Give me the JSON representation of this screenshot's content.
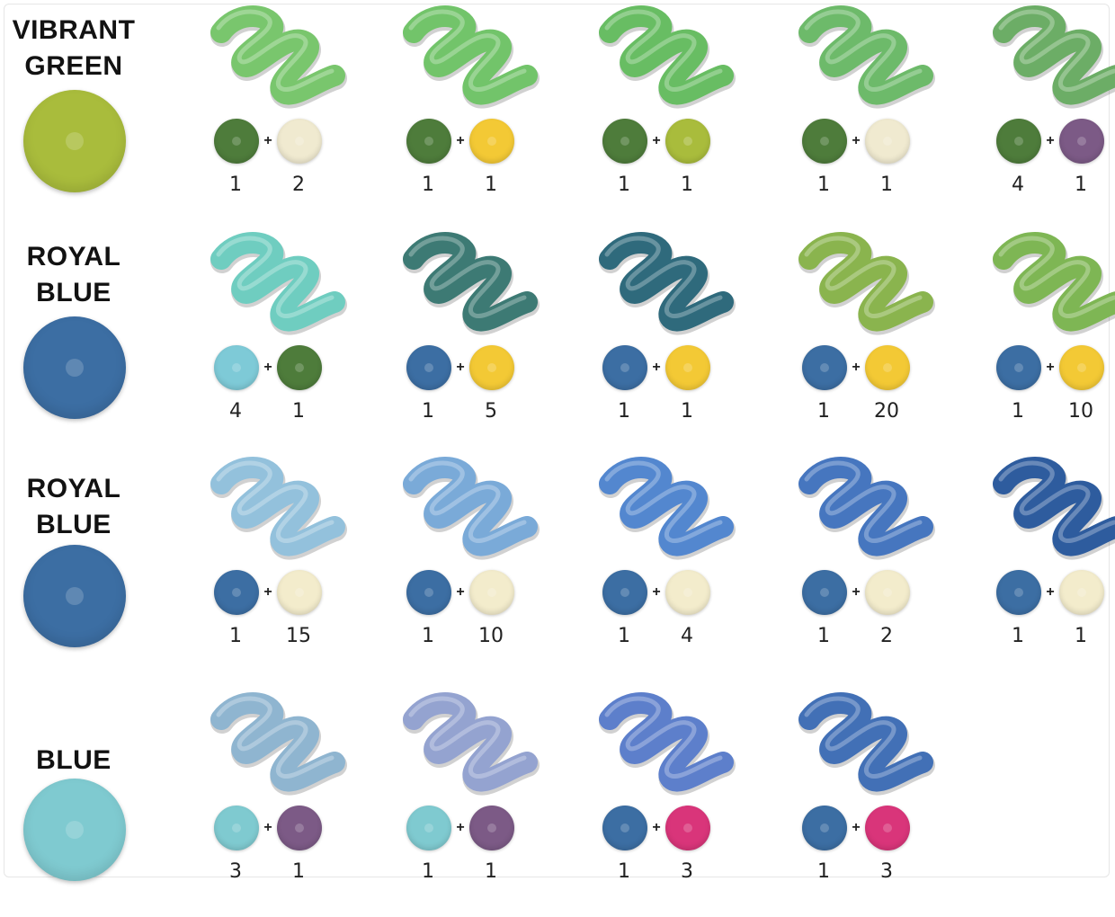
{
  "rows": [
    {
      "label_lines": [
        "VIBRANT",
        "GREEN"
      ],
      "base_color": "#a9bc3c",
      "mixes": [
        {
          "result": "#79c66d",
          "a": {
            "color": "#4e7c3b",
            "parts": "1"
          },
          "b": {
            "color": "#f0ead0",
            "parts": "2"
          }
        },
        {
          "result": "#72c46a",
          "a": {
            "color": "#4e7c3b",
            "parts": "1"
          },
          "b": {
            "color": "#f3c935",
            "parts": "1"
          }
        },
        {
          "result": "#68bd63",
          "a": {
            "color": "#4e7c3b",
            "parts": "1"
          },
          "b": {
            "color": "#a9bc3c",
            "parts": "1"
          }
        },
        {
          "result": "#6dba6a",
          "a": {
            "color": "#4e7c3b",
            "parts": "1"
          },
          "b": {
            "color": "#f0ead0",
            "parts": "1"
          }
        },
        {
          "result": "#6cad66",
          "a": {
            "color": "#4e7c3b",
            "parts": "4"
          },
          "b": {
            "color": "#7c5a86",
            "parts": "1"
          }
        }
      ]
    },
    {
      "label_lines": [
        "ROYAL",
        "BLUE"
      ],
      "base_color": "#3c6ea3",
      "mixes": [
        {
          "result": "#6fcdc0",
          "a": {
            "color": "#7ecad7",
            "parts": "4"
          },
          "b": {
            "color": "#4e7c3b",
            "parts": "1"
          }
        },
        {
          "result": "#3d7a74",
          "a": {
            "color": "#3c6ea3",
            "parts": "1"
          },
          "b": {
            "color": "#f3c935",
            "parts": "5"
          }
        },
        {
          "result": "#2f6a7c",
          "a": {
            "color": "#3c6ea3",
            "parts": "1"
          },
          "b": {
            "color": "#f3c935",
            "parts": "1"
          }
        },
        {
          "result": "#8ab44e",
          "a": {
            "color": "#3c6ea3",
            "parts": "1"
          },
          "b": {
            "color": "#f3c935",
            "parts": "20"
          }
        },
        {
          "result": "#7eb654",
          "a": {
            "color": "#3c6ea3",
            "parts": "1"
          },
          "b": {
            "color": "#f3c935",
            "parts": "10"
          }
        }
      ]
    },
    {
      "label_lines": [
        "ROYAL",
        "BLUE"
      ],
      "base_color": "#3c6ea3",
      "mixes": [
        {
          "result": "#93c1dc",
          "a": {
            "color": "#3c6ea3",
            "parts": "1"
          },
          "b": {
            "color": "#f3eccc",
            "parts": "15"
          }
        },
        {
          "result": "#7aaad8",
          "a": {
            "color": "#3c6ea3",
            "parts": "1"
          },
          "b": {
            "color": "#f3eccc",
            "parts": "10"
          }
        },
        {
          "result": "#5387cf",
          "a": {
            "color": "#3c6ea3",
            "parts": "1"
          },
          "b": {
            "color": "#f3eccc",
            "parts": "4"
          }
        },
        {
          "result": "#4676bf",
          "a": {
            "color": "#3c6ea3",
            "parts": "1"
          },
          "b": {
            "color": "#f3eccc",
            "parts": "2"
          }
        },
        {
          "result": "#2e5c9e",
          "a": {
            "color": "#3c6ea3",
            "parts": "1"
          },
          "b": {
            "color": "#f3eccc",
            "parts": "1"
          }
        }
      ]
    },
    {
      "label_lines": [
        "BLUE"
      ],
      "base_color": "#7fcad0",
      "mixes": [
        {
          "result": "#8fb5d0",
          "a": {
            "color": "#7fcad0",
            "parts": "3"
          },
          "b": {
            "color": "#7c5a86",
            "parts": "1"
          }
        },
        {
          "result": "#94a3d0",
          "a": {
            "color": "#7fcad0",
            "parts": "1"
          },
          "b": {
            "color": "#7c5a86",
            "parts": "1"
          }
        },
        {
          "result": "#5d7fcb",
          "a": {
            "color": "#3c6ea3",
            "parts": "1"
          },
          "b": {
            "color": "#d9357a",
            "parts": "3"
          }
        },
        {
          "result": "#4270b6",
          "a": {
            "color": "#3c6ea3",
            "parts": "1"
          },
          "b": {
            "color": "#d9357a",
            "parts": "3"
          }
        }
      ]
    }
  ],
  "plus_sign": "+"
}
